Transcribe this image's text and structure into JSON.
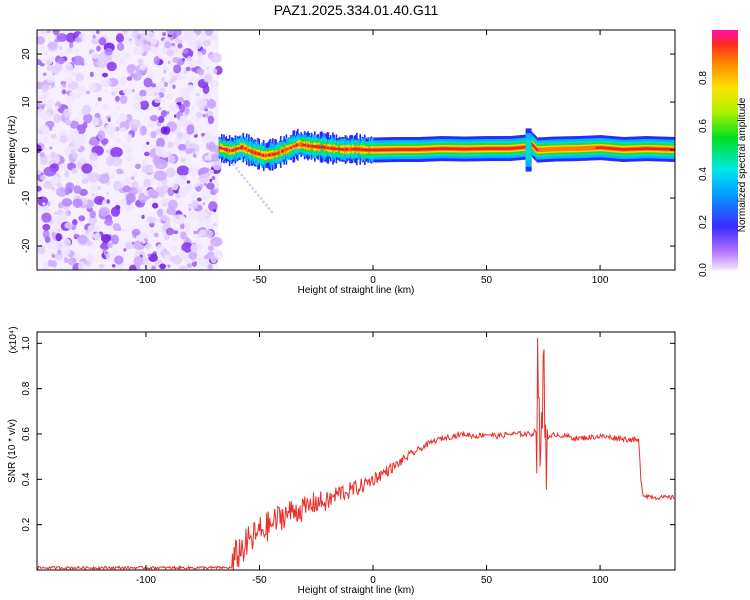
{
  "title": "PAZ1.2025.334.01.40.G11",
  "colors": {
    "snr_line": "#e8302a",
    "noise_purple": "#7a2af0",
    "track_core": "#e8232a"
  },
  "chart_data": [
    {
      "type": "heatmap",
      "name": "spectrogram",
      "xlabel": "Height of straight line (km)",
      "ylabel": "Frequency (Hz)",
      "xlim": [
        -148,
        133
      ],
      "ylim": [
        -25,
        25
      ],
      "xticks": [
        -100,
        -50,
        0,
        50,
        100
      ],
      "yticks": [
        -20,
        -10,
        0,
        10,
        20
      ],
      "noise_region_x": [
        -148,
        -68
      ],
      "track": {
        "x": [
          -68,
          -63,
          -58,
          -53,
          -48,
          -43,
          -38,
          -33,
          -28,
          -23,
          -18,
          -13,
          -8,
          -3,
          0,
          10,
          20,
          30,
          40,
          50,
          60,
          67,
          69,
          72,
          80,
          90,
          100,
          110,
          120,
          133
        ],
        "freq": [
          0.5,
          -0.2,
          0.6,
          -0.5,
          -1.2,
          -0.8,
          0.2,
          1.2,
          0.8,
          0.6,
          0.3,
          0.1,
          0.2,
          0.0,
          0.0,
          0.1,
          0.1,
          0.3,
          0.2,
          0.3,
          0.3,
          0.6,
          1.5,
          0.0,
          0.2,
          0.3,
          0.5,
          0.1,
          0.3,
          0.1
        ]
      },
      "colorbar": {
        "label": "Normalized spectral amplitude",
        "range": [
          0.0,
          1.0
        ],
        "ticks": [
          0.0,
          0.2,
          0.4,
          0.6,
          0.8
        ]
      }
    },
    {
      "type": "line",
      "name": "snr",
      "xlabel": "Height of straight line (km)",
      "ylabel": "SNR (10 * v/v)",
      "scale_label": "(x10⁴)",
      "xlim": [
        -148,
        133
      ],
      "ylim": [
        0.0,
        1.05
      ],
      "xticks": [
        -100,
        -50,
        0,
        50,
        100
      ],
      "yticks": [
        0.2,
        0.4,
        0.6,
        0.8,
        1.0
      ],
      "series": [
        {
          "name": "SNR",
          "x": [
            -148,
            -120,
            -90,
            -62,
            -60,
            -55,
            -50,
            -45,
            -40,
            -35,
            -30,
            -25,
            -20,
            -15,
            -10,
            -5,
            0,
            5,
            10,
            15,
            20,
            25,
            30,
            35,
            40,
            45,
            50,
            55,
            60,
            65,
            70,
            72,
            73,
            74,
            75,
            76,
            78,
            80,
            90,
            100,
            110,
            117,
            118,
            119,
            125,
            133
          ],
          "y": [
            0.01,
            0.01,
            0.01,
            0.01,
            0.07,
            0.12,
            0.17,
            0.2,
            0.24,
            0.26,
            0.27,
            0.3,
            0.3,
            0.34,
            0.35,
            0.37,
            0.4,
            0.43,
            0.46,
            0.5,
            0.53,
            0.56,
            0.58,
            0.59,
            0.6,
            0.59,
            0.6,
            0.59,
            0.6,
            0.6,
            0.6,
            0.62,
            0.95,
            0.3,
            1.0,
            0.6,
            0.58,
            0.6,
            0.58,
            0.59,
            0.58,
            0.57,
            0.4,
            0.33,
            0.32,
            0.32
          ]
        }
      ]
    }
  ]
}
